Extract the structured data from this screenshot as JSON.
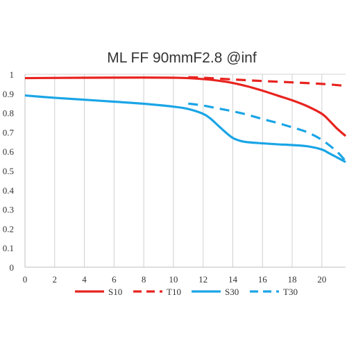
{
  "chart_data": {
    "type": "line",
    "title": "ML FF 90mmF2.8 @inf",
    "xlabel": "",
    "ylabel": "",
    "xlim": [
      0,
      21.6
    ],
    "ylim": [
      0,
      1
    ],
    "x_ticks": [
      0,
      2,
      4,
      6,
      8,
      10,
      12,
      14,
      16,
      18,
      20
    ],
    "y_ticks": [
      0,
      0.1,
      0.2,
      0.3,
      0.4,
      0.5,
      0.6,
      0.7,
      0.8,
      0.9,
      1
    ],
    "x_tick_labels": [
      "0",
      "2",
      "4",
      "6",
      "8",
      "10",
      "12",
      "14",
      "16",
      "18",
      "20"
    ],
    "y_tick_labels": [
      "0",
      "0.1",
      "0.2",
      "0.3",
      "0.4",
      "0.5",
      "0.6",
      "0.7",
      "0.8",
      "0.9",
      "1"
    ],
    "grid": "vertical",
    "legend_position": "bottom",
    "series": [
      {
        "name": "S10",
        "color": "#e8231f",
        "style": "solid",
        "x": [
          0,
          4,
          8,
          10,
          11,
          12,
          13,
          14,
          15,
          16,
          17,
          18,
          19,
          20,
          20.5,
          21,
          21.6
        ],
        "y": [
          0.98,
          0.982,
          0.983,
          0.982,
          0.98,
          0.975,
          0.967,
          0.955,
          0.937,
          0.915,
          0.89,
          0.865,
          0.835,
          0.795,
          0.76,
          0.72,
          0.68
        ]
      },
      {
        "name": "T10",
        "color": "#e8231f",
        "style": "dashed",
        "x": [
          11,
          12,
          14,
          16,
          18,
          20,
          21.6
        ],
        "y": [
          0.985,
          0.982,
          0.973,
          0.965,
          0.958,
          0.95,
          0.94
        ]
      },
      {
        "name": "S30",
        "color": "#1aa5e6",
        "style": "solid",
        "x": [
          0,
          2,
          4,
          6,
          8,
          10,
          11,
          12,
          12.5,
          13,
          13.5,
          14,
          14.5,
          15,
          16,
          17,
          18,
          19,
          20,
          20.5,
          21,
          21.6
        ],
        "y": [
          0.89,
          0.878,
          0.868,
          0.858,
          0.847,
          0.832,
          0.82,
          0.795,
          0.77,
          0.735,
          0.7,
          0.67,
          0.655,
          0.648,
          0.642,
          0.637,
          0.633,
          0.627,
          0.61,
          0.59,
          0.57,
          0.545
        ]
      },
      {
        "name": "T30",
        "color": "#1aa5e6",
        "style": "dashed",
        "x": [
          11,
          12,
          13,
          14,
          15,
          16,
          17,
          18,
          19,
          20,
          21,
          21.6
        ],
        "y": [
          0.848,
          0.838,
          0.823,
          0.808,
          0.79,
          0.768,
          0.748,
          0.725,
          0.7,
          0.66,
          0.6,
          0.55
        ]
      }
    ]
  }
}
